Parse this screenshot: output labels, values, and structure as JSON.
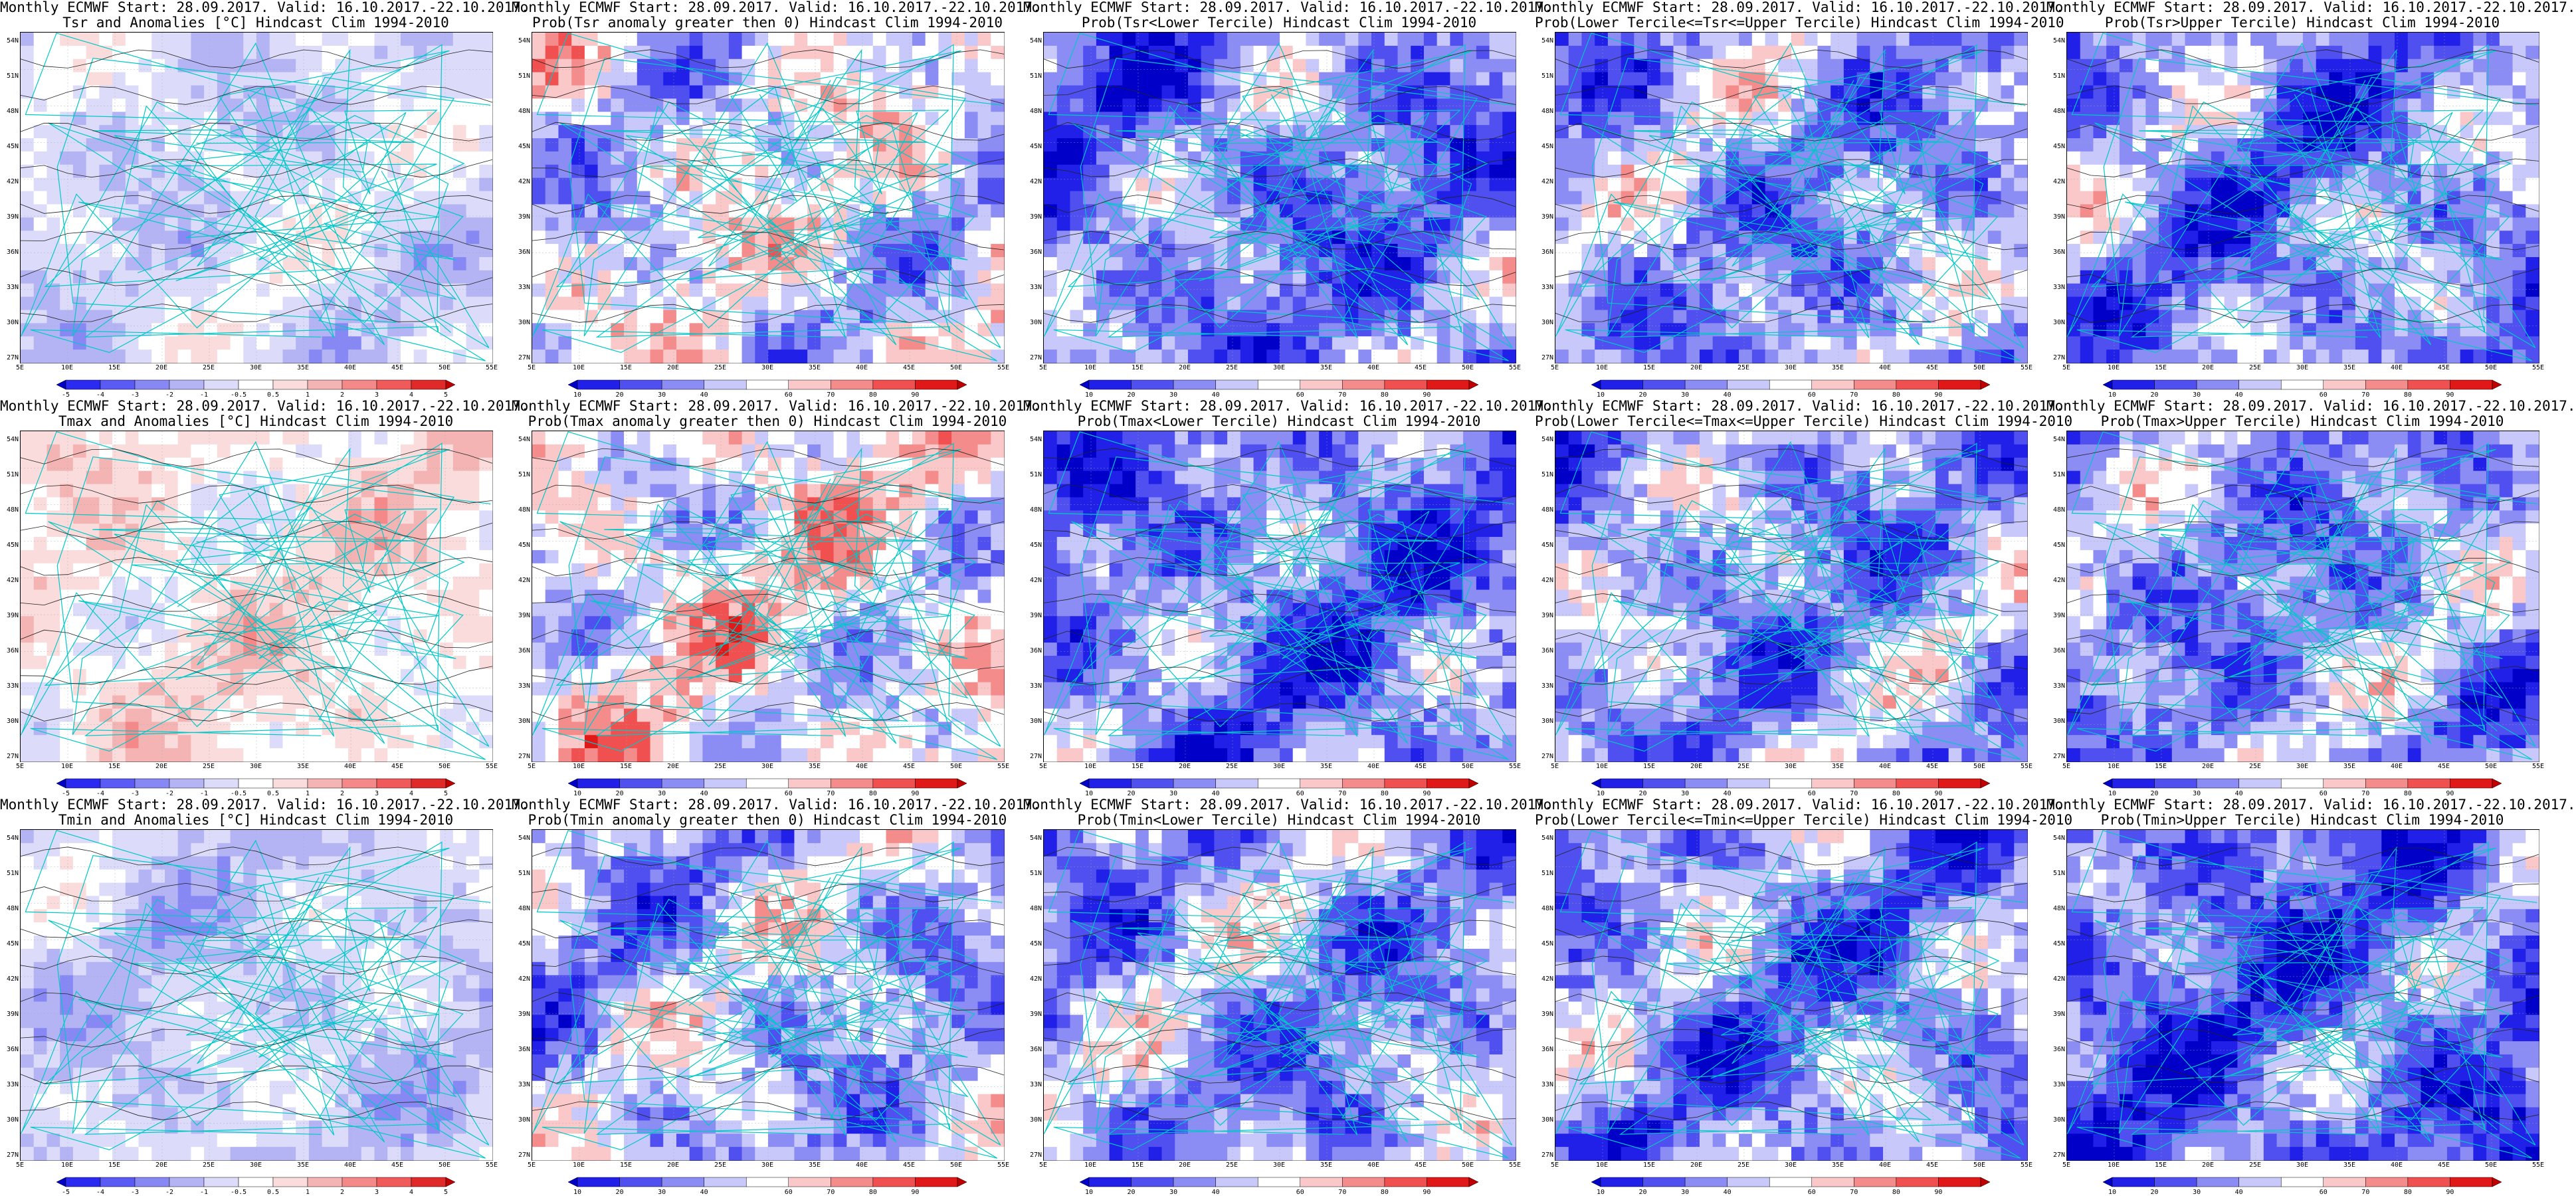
{
  "common": {
    "lat_ticks": [
      "54N",
      "51N",
      "48N",
      "45N",
      "42N",
      "39N",
      "36N",
      "33N",
      "30N",
      "27N"
    ],
    "lon_ticks": [
      "5E",
      "10E",
      "15E",
      "20E",
      "25E",
      "30E",
      "35E",
      "40E",
      "45E",
      "50E",
      "55E"
    ]
  },
  "scales": {
    "anomaly": {
      "labels": [
        "-5",
        "-4",
        "-3",
        "-2",
        "-1",
        "-0.5",
        "0.5",
        "1",
        "2",
        "3",
        "4",
        "5"
      ],
      "colors": [
        "#0000c8",
        "#2a2af0",
        "#5a5af5",
        "#8888f5",
        "#b4b4f5",
        "#dcdcfa",
        "#ffffff",
        "#fadcdc",
        "#f5b4b4",
        "#f58888",
        "#f05a5a",
        "#e02a2a",
        "#c00000"
      ]
    },
    "probability": {
      "labels": [
        "10",
        "20",
        "30",
        "40",
        "60",
        "70",
        "80",
        "90"
      ],
      "colors": [
        "#0000c8",
        "#2020e8",
        "#5050f0",
        "#8c8cf5",
        "#c8c8fa",
        "#ffffff",
        "#fac8c8",
        "#f58c8c",
        "#f05050",
        "#e01818",
        "#c00000"
      ]
    }
  },
  "chart_data": [
    {
      "type": "heatmap",
      "scale": "anomaly",
      "mean": -0.15,
      "title_line1": "Monthly ECMWF Start: 28.09.2017. Valid: 16.10.2017.-22.10.2017.",
      "title_line2": "Tsr and Anomalies [°C] Hindcast Clim 1994-2010"
    },
    {
      "type": "heatmap",
      "scale": "probability",
      "mean": 0.45,
      "title_line1": "Monthly ECMWF Start: 28.09.2017. Valid: 16.10.2017.-22.10.2017.",
      "title_line2": "Prob(Tsr anomaly greater then 0) Hindcast Clim 1994-2010"
    },
    {
      "type": "heatmap",
      "scale": "probability",
      "mean": 0.28,
      "title_line1": "Monthly ECMWF Start: 28.09.2017. Valid: 16.10.2017.-22.10.2017.",
      "title_line2": "Prob(Tsr<Lower Tercile) Hindcast Clim 1994-2010"
    },
    {
      "type": "heatmap",
      "scale": "probability",
      "mean": 0.33,
      "title_line1": "Monthly ECMWF Start: 28.09.2017. Valid: 16.10.2017.-22.10.2017.",
      "title_line2": "Prob(Lower Tercile<=Tsr<=Upper Tercile) Hindcast Clim 1994-2010"
    },
    {
      "type": "heatmap",
      "scale": "probability",
      "mean": 0.3,
      "title_line1": "Monthly ECMWF Start: 28.09.2017. Valid: 16.10.2017.-22.10.2017.",
      "title_line2": "Prob(Tsr>Upper Tercile) Hindcast Clim 1994-2010"
    },
    {
      "type": "heatmap",
      "scale": "anomaly",
      "mean": 0.1,
      "title_line1": "Monthly ECMWF Start: 28.09.2017. Valid: 16.10.2017.-22.10.2017.",
      "title_line2": "Tmax and Anomalies [°C] Hindcast Clim 1994-2010"
    },
    {
      "type": "heatmap",
      "scale": "probability",
      "mean": 0.5,
      "title_line1": "Monthly ECMWF Start: 28.09.2017. Valid: 16.10.2017.-22.10.2017.",
      "title_line2": "Prob(Tmax anomaly greater then 0) Hindcast Clim 1994-2010"
    },
    {
      "type": "heatmap",
      "scale": "probability",
      "mean": 0.26,
      "title_line1": "Monthly ECMWF Start: 28.09.2017. Valid: 16.10.2017.-22.10.2017.",
      "title_line2": "Prob(Tmax<Lower Tercile) Hindcast Clim 1994-2010"
    },
    {
      "type": "heatmap",
      "scale": "probability",
      "mean": 0.33,
      "title_line1": "Monthly ECMWF Start: 28.09.2017. Valid: 16.10.2017.-22.10.2017.",
      "title_line2": "Prob(Lower Tercile<=Tmax<=Upper Tercile) Hindcast Clim 1994-2010"
    },
    {
      "type": "heatmap",
      "scale": "probability",
      "mean": 0.32,
      "title_line1": "Monthly ECMWF Start: 28.09.2017. Valid: 16.10.2017.-22.10.2017.",
      "title_line2": "Prob(Tmax>Upper Tercile) Hindcast Clim 1994-2010"
    },
    {
      "type": "heatmap",
      "scale": "anomaly",
      "mean": -0.2,
      "title_line1": "Monthly ECMWF Start: 28.09.2017. Valid: 16.10.2017.-22.10.2017.",
      "title_line2": "Tmin and Anomalies [°C] Hindcast Clim 1994-2010"
    },
    {
      "type": "heatmap",
      "scale": "probability",
      "mean": 0.38,
      "title_line1": "Monthly ECMWF Start: 28.09.2017. Valid: 16.10.2017.-22.10.2017.",
      "title_line2": "Prob(Tmin anomaly greater then 0) Hindcast Clim 1994-2010"
    },
    {
      "type": "heatmap",
      "scale": "probability",
      "mean": 0.33,
      "title_line1": "Monthly ECMWF Start: 28.09.2017. Valid: 16.10.2017.-22.10.2017.",
      "title_line2": "Prob(Tmin<Lower Tercile) Hindcast Clim 1994-2010"
    },
    {
      "type": "heatmap",
      "scale": "probability",
      "mean": 0.3,
      "title_line1": "Monthly ECMWF Start: 28.09.2017. Valid: 16.10.2017.-22.10.2017.",
      "title_line2": "Prob(Lower Tercile<=Tmin<=Upper Tercile) Hindcast Clim 1994-2010"
    },
    {
      "type": "heatmap",
      "scale": "probability",
      "mean": 0.22,
      "title_line1": "Monthly ECMWF Start: 28.09.2017. Valid: 16.10.2017.-22.10.2017.",
      "title_line2": "Prob(Tmin>Upper Tercile) Hindcast Clim 1994-2010"
    }
  ]
}
